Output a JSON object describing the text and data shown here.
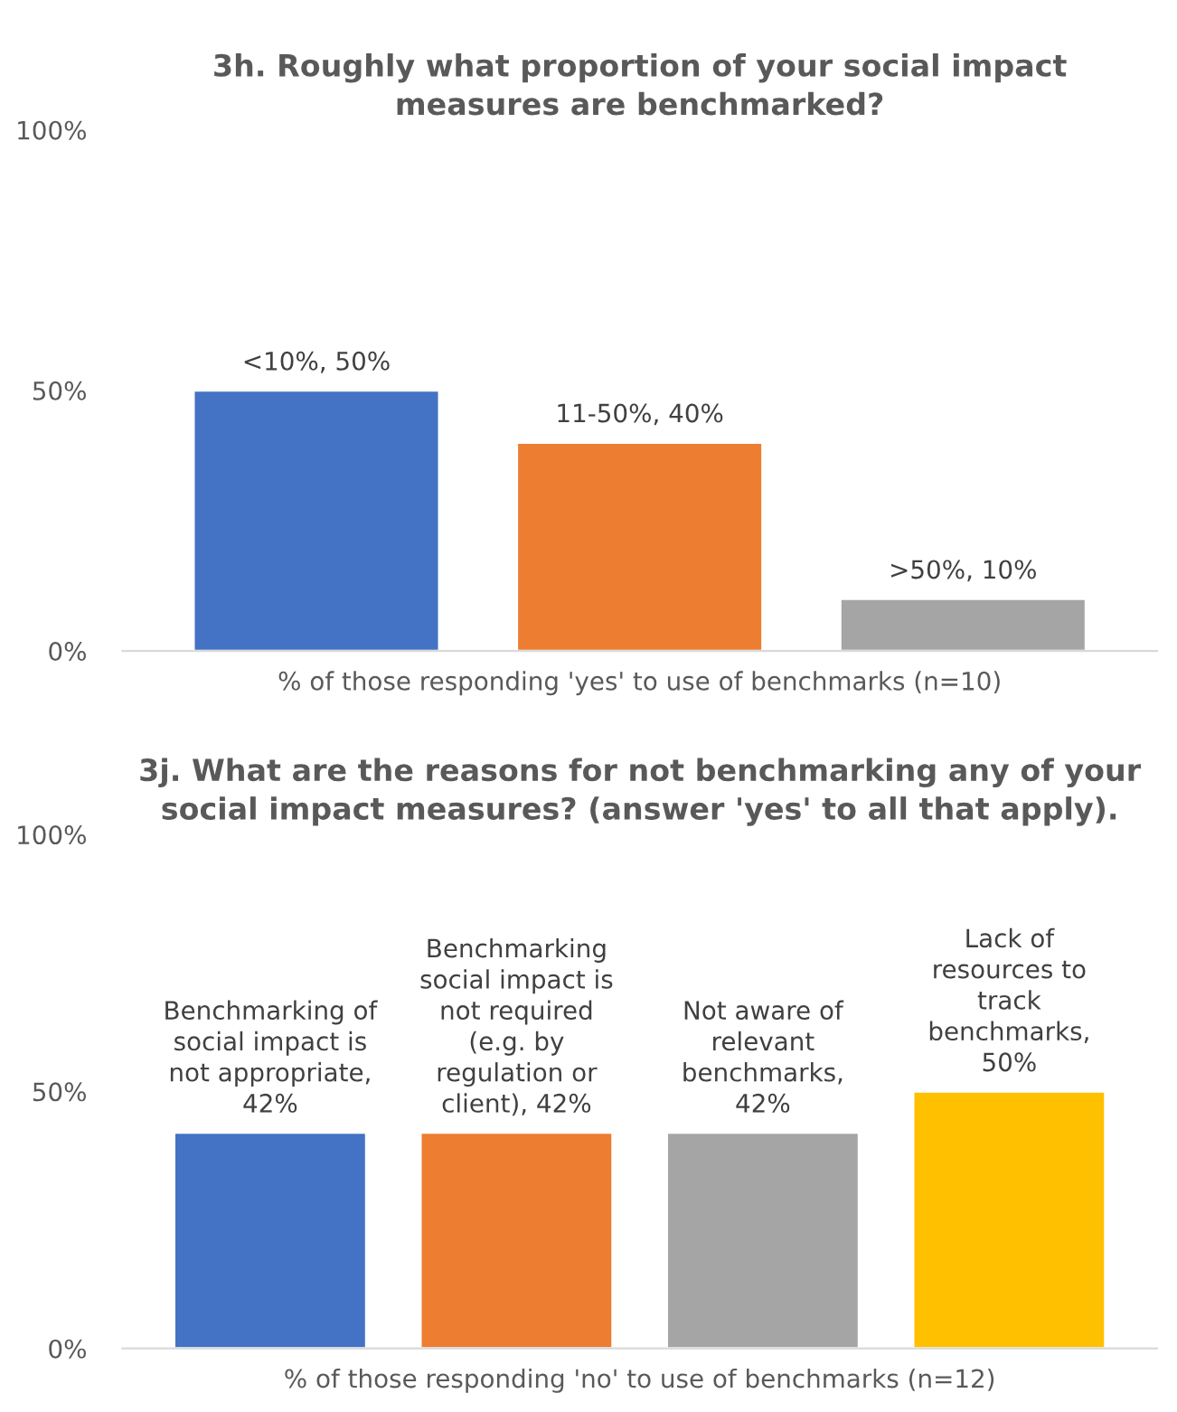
{
  "chart_data": [
    {
      "type": "bar",
      "title": "3h. Roughly what proportion of your social impact\nmeasures are benchmarked?",
      "xlabel": "% of those responding 'yes' to use of benchmarks (n=10)",
      "categories": [
        null,
        null,
        null
      ],
      "values": [
        50,
        40,
        10
      ],
      "colors": [
        "#4472c4",
        "#ed7d31",
        "#a5a5a5"
      ],
      "value_labels": [
        "<10%, 50%",
        "11-50%, 40%",
        ">50%, 10%"
      ],
      "ylim": [
        0,
        100
      ],
      "yticks": [
        {
          "value": 0,
          "label": "0%"
        },
        {
          "value": 50,
          "label": "50%"
        },
        {
          "value": 100,
          "label": "100%"
        }
      ],
      "tick_labels": "y",
      "grid": false,
      "legend": false
    },
    {
      "type": "bar",
      "title": "3j. What are the reasons for not benchmarking any of your\nsocial impact measures? (answer 'yes' to all that apply).",
      "xlabel": "% of those responding 'no' to use of benchmarks (n=12)",
      "categories": [
        null,
        null,
        null,
        null
      ],
      "values": [
        42,
        42,
        42,
        50
      ],
      "colors": [
        "#4472c4",
        "#ed7d31",
        "#a5a5a5",
        "#ffc000"
      ],
      "value_labels": [
        "Benchmarking of\nsocial impact is\nnot appropriate,\n42%",
        "Benchmarking\nsocial impact is\nnot required\n(e.g. by\nregulation or\nclient), 42%",
        "Not aware of\nrelevant\nbenchmarks,\n42%",
        "Lack of\nresources to\ntrack\nbenchmarks,\n50%"
      ],
      "ylim": [
        0,
        100
      ],
      "yticks": [
        {
          "value": 0,
          "label": "0%"
        },
        {
          "value": 50,
          "label": "50%"
        },
        {
          "value": 100,
          "label": "100%"
        }
      ],
      "tick_labels": "y",
      "grid": false,
      "legend": false
    }
  ]
}
